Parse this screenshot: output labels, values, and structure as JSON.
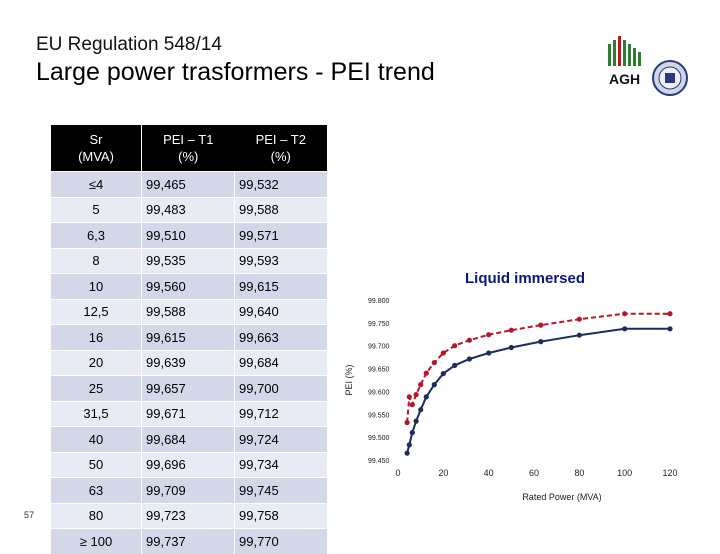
{
  "slide": {
    "subtitle": "EU Regulation 548/14",
    "title": "Large power trasformers - PEI trend",
    "page_number": "57"
  },
  "logos": {
    "agh_text": "AGH",
    "agh_color": "#2e7d32",
    "agh_accent": "#b71c1c"
  },
  "table": {
    "headers": [
      "Sr\n(MVA)",
      "PEI – T1\n(%)",
      "PEI – T2\n(%)"
    ],
    "header_lines": [
      [
        "Sr",
        "(MVA)"
      ],
      [
        "PEI – T1",
        "(%)"
      ],
      [
        "PEI – T2",
        "(%)"
      ]
    ],
    "rows": [
      [
        "≤4",
        "99,465",
        "99,532"
      ],
      [
        "5",
        "99,483",
        "99,588"
      ],
      [
        "6,3",
        "99,510",
        "99,571"
      ],
      [
        "8",
        "99,535",
        "99,593"
      ],
      [
        "10",
        "99,560",
        "99,615"
      ],
      [
        "12,5",
        "99,588",
        "99,640"
      ],
      [
        "16",
        "99,615",
        "99,663"
      ],
      [
        "20",
        "99,639",
        "99,684"
      ],
      [
        "25",
        "99,657",
        "99,700"
      ],
      [
        "31,5",
        "99,671",
        "99,712"
      ],
      [
        "40",
        "99,684",
        "99,724"
      ],
      [
        "50",
        "99,696",
        "99,734"
      ],
      [
        "63",
        "99,709",
        "99,745"
      ],
      [
        "80",
        "99,723",
        "99,758"
      ],
      [
        "≥ 100",
        "99,737",
        "99,770"
      ]
    ]
  },
  "chart_data": {
    "type": "line",
    "title": "Liquid immersed",
    "xlabel": "Rated Power (MVA)",
    "ylabel": "PEI (%)",
    "xlim": [
      0,
      120
    ],
    "ylim": [
      99.45,
      99.8
    ],
    "xticks": [
      "0",
      "20",
      "40",
      "60",
      "80",
      "100",
      "120"
    ],
    "yticks": [
      "99.450",
      "99.500",
      "99.550",
      "99.600",
      "99.650",
      "99.700",
      "99.750",
      "99.800"
    ],
    "x": [
      4,
      5,
      6.3,
      8,
      10,
      12.5,
      16,
      20,
      25,
      31.5,
      40,
      50,
      63,
      80,
      100
    ],
    "series": [
      {
        "values": [
          99.465,
          99.483,
          99.51,
          99.535,
          99.56,
          99.588,
          99.615,
          99.639,
          99.657,
          99.671,
          99.684,
          99.696,
          99.709,
          99.723,
          99.737
        ],
        "color": "#1f2d5c"
      },
      {
        "values": [
          99.532,
          99.588,
          99.571,
          99.593,
          99.615,
          99.64,
          99.663,
          99.684,
          99.7,
          99.712,
          99.724,
          99.734,
          99.745,
          99.758,
          99.77
        ],
        "color": "#b3172a"
      }
    ],
    "grid": false,
    "legend": "none",
    "x_end_extension": 120
  }
}
